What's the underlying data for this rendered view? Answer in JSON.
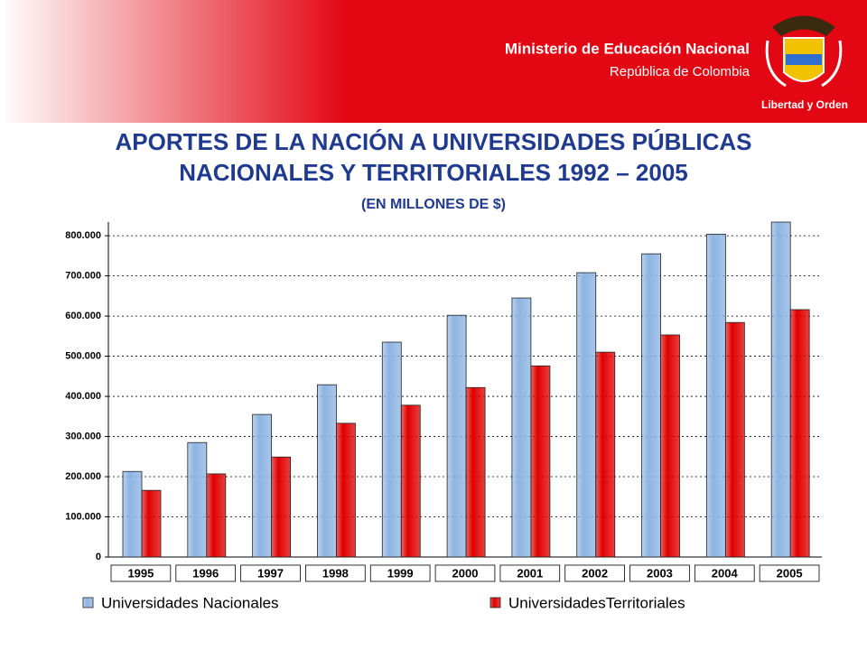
{
  "header": {
    "ministry": "Ministerio de Educación Nacional",
    "country": "República de Colombia",
    "motto": "Libertad y Orden"
  },
  "chart_data": {
    "type": "bar",
    "title": "APORTES DE LA NACIÓN A UNIVERSIDADES PÚBLICAS NACIONALES Y TERRITORIALES 1992 – 2005",
    "subtitle": "(EN MILLONES DE $)",
    "categories": [
      "1995",
      "1996",
      "1997",
      "1998",
      "1999",
      "2000",
      "2001",
      "2002",
      "2003",
      "2004",
      "2005"
    ],
    "series": [
      {
        "name": "Universidades Nacionales",
        "color": "#8db4e2",
        "values": [
          213000,
          285000,
          355000,
          429000,
          535000,
          602000,
          645000,
          708000,
          755000,
          804000,
          834000
        ]
      },
      {
        "name": "UniversidadesTerritoriales",
        "color": "#e00000",
        "values": [
          166000,
          207000,
          249000,
          333000,
          378000,
          422000,
          476000,
          510000,
          553000,
          584000,
          616000
        ]
      }
    ],
    "ylim": [
      0,
      834000
    ],
    "yticks": [
      0,
      {
        "value": 100000,
        "label": "100.000"
      },
      {
        "value": 200000,
        "label": "200.000"
      },
      {
        "value": 300000,
        "label": "300.000"
      },
      {
        "value": 400000,
        "label": "400.000"
      },
      {
        "value": 500000,
        "label": "500.000"
      },
      {
        "value": 600000,
        "label": "600.000"
      },
      {
        "value": 700000,
        "label": "700.000"
      },
      {
        "value": 800000,
        "label": "800.000"
      }
    ],
    "grid": true
  }
}
